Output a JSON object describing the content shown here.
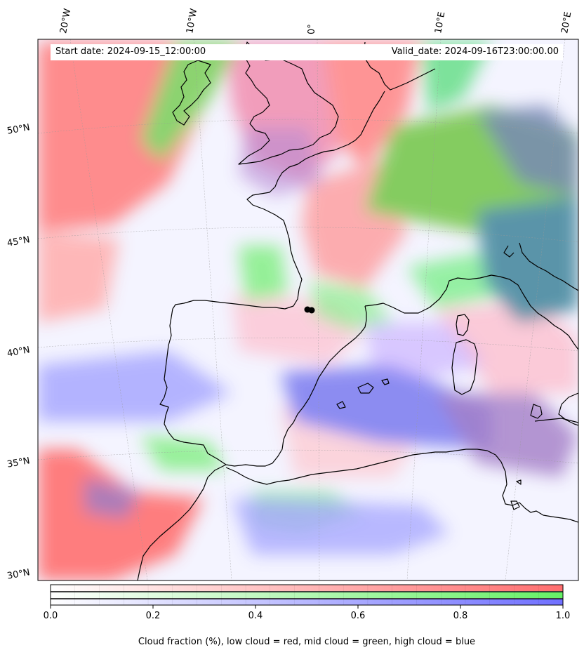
{
  "map": {
    "title_left": "Start date: 2024-09-15_12:00:00",
    "title_right": "Valid_date: 2024-09-16T23:00:00.00",
    "lon_labels": [
      "20°W",
      "10°W",
      "0°",
      "10°E",
      "20°E"
    ],
    "lat_labels": [
      "50°N",
      "45°N",
      "40°N",
      "35°N",
      "30°N"
    ],
    "layers": {
      "low_cloud_color": "#ff7070",
      "mid_cloud_color": "#70e070",
      "high_cloud_color": "#8080ff",
      "coastline_color": "#000000"
    }
  },
  "colorbar": {
    "ticks": [
      "0.0",
      "0.2",
      "0.4",
      "0.6",
      "0.8",
      "1.0"
    ],
    "range": [
      0,
      1
    ],
    "caption": "Cloud fraction (%), low cloud = red, mid cloud = green, high cloud = blue",
    "colors": [
      "#ff6e6e",
      "#66f066",
      "#7070ff"
    ]
  }
}
